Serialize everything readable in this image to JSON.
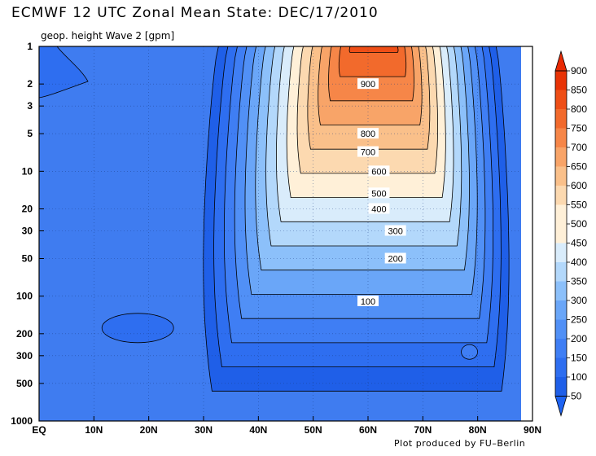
{
  "title": "ECMWF 12 UTC Zonal Mean State: DEC/17/2010",
  "subtitle": "geop. height Wave 2 [gpm]",
  "credit": "Plot produced by FU–Berlin",
  "colors": {
    "background_fill": "#3f7cf0",
    "levels": [
      "#1f5fe8",
      "#2e6ef0",
      "#3f7ef4",
      "#5190f6",
      "#6aa6f8",
      "#8cc0fa",
      "#b3d8fb",
      "#d9ecfb",
      "#fff0d8",
      "#fcd9b0",
      "#fac08a",
      "#f8a468",
      "#f68648",
      "#f26a2c",
      "#ee4e16",
      "#e83306"
    ]
  },
  "chart_data": {
    "type": "contour",
    "title": "ECMWF 12 UTC Zonal Mean State: DEC/17/2010",
    "subtitle": "geop. height Wave 2 [gpm]",
    "x_ticks": [
      "EQ",
      "10N",
      "20N",
      "30N",
      "40N",
      "50N",
      "60N",
      "70N",
      "80N",
      "90N"
    ],
    "x_values": [
      0,
      10,
      20,
      30,
      40,
      50,
      60,
      70,
      80,
      90
    ],
    "y_ticks": [
      "1",
      "2",
      "3",
      "5",
      "10",
      "20",
      "30",
      "50",
      "100",
      "200",
      "300",
      "500",
      "1000"
    ],
    "y_values": [
      1,
      2,
      3,
      5,
      10,
      20,
      30,
      50,
      100,
      200,
      300,
      500,
      1000
    ],
    "y_scale": "log",
    "xlim": [
      0,
      90
    ],
    "ylim": [
      1000,
      1
    ],
    "colorbar_labels": [
      "900",
      "850",
      "800",
      "750",
      "700",
      "650",
      "600",
      "550",
      "500",
      "450",
      "400",
      "350",
      "300",
      "250",
      "200",
      "150",
      "100",
      "50"
    ],
    "colorbar_values": [
      900,
      850,
      800,
      750,
      700,
      650,
      600,
      550,
      500,
      450,
      400,
      350,
      300,
      250,
      200,
      150,
      100,
      50
    ],
    "contour_labels": [
      {
        "text": "900",
        "lat": 60,
        "p": 2
      },
      {
        "text": "800",
        "lat": 60,
        "p": 5
      },
      {
        "text": "700",
        "lat": 60,
        "p": 7
      },
      {
        "text": "600",
        "lat": 62,
        "p": 10
      },
      {
        "text": "500",
        "lat": 62,
        "p": 15
      },
      {
        "text": "400",
        "lat": 62,
        "p": 20
      },
      {
        "text": "300",
        "lat": 65,
        "p": 30
      },
      {
        "text": "200",
        "lat": 65,
        "p": 50
      },
      {
        "text": "100",
        "lat": 60,
        "p": 110
      }
    ],
    "contour_interval": 50,
    "max_region": {
      "lat": 60,
      "p": 1,
      "value": 900
    }
  }
}
